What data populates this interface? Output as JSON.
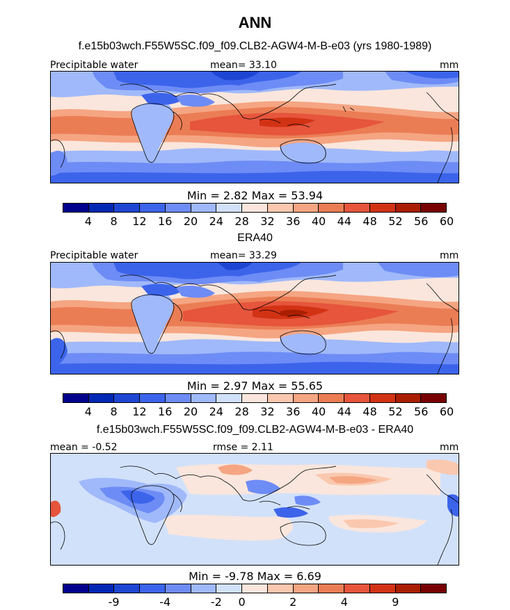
{
  "title": "ANN",
  "palette": {
    "abs": [
      "#00008c",
      "#0028b4",
      "#1e46d2",
      "#3c64eb",
      "#6e8cf5",
      "#a0b9fa",
      "#d2e1fa",
      "#fae6dc",
      "#fac8af",
      "#f5a582",
      "#eb7d55",
      "#e6553c",
      "#d23214",
      "#aa1e00",
      "#780000"
    ],
    "diff": [
      "#00008c",
      "#0028b4",
      "#1e46d2",
      "#3c64eb",
      "#6e8cf5",
      "#a0b9fa",
      "#d2e1fa",
      "#fae6dc",
      "#fac8af",
      "#f5a582",
      "#eb7d55",
      "#e6553c",
      "#d23214",
      "#aa1e00",
      "#780000"
    ]
  },
  "panels": [
    {
      "title": "f.e15b03wch.F55W5SC.f09_f09.CLB2-AGW4-M-B-e03 (yrs 1980-1989)",
      "left_label": "Precipitable water",
      "center_label": "mean=  33.10",
      "units": "mm",
      "stats": "Min =    2.82 Max =   53.94",
      "ticks": [
        "4",
        "8",
        "12",
        "16",
        "20",
        "24",
        "28",
        "32",
        "36",
        "40",
        "44",
        "48",
        "52",
        "56",
        "60"
      ]
    },
    {
      "title": "ERA40",
      "left_label": "Precipitable water",
      "center_label": "mean=  33.29",
      "units": "mm",
      "stats": "Min =    2.97 Max =   55.65",
      "ticks": [
        "4",
        "8",
        "12",
        "16",
        "20",
        "24",
        "28",
        "32",
        "36",
        "40",
        "44",
        "48",
        "52",
        "56",
        "60"
      ]
    },
    {
      "title": "f.e15b03wch.F55W5SC.f09_f09.CLB2-AGW4-M-B-e03 - ERA40",
      "left_label": "mean =  -0.52",
      "center_label": "rmse =    2.11",
      "units": "mm",
      "stats": "Min =   -9.78 Max =    6.69",
      "ticks": [
        "-9",
        "-4",
        "-2",
        "0",
        "2",
        "4",
        "9"
      ]
    }
  ]
}
